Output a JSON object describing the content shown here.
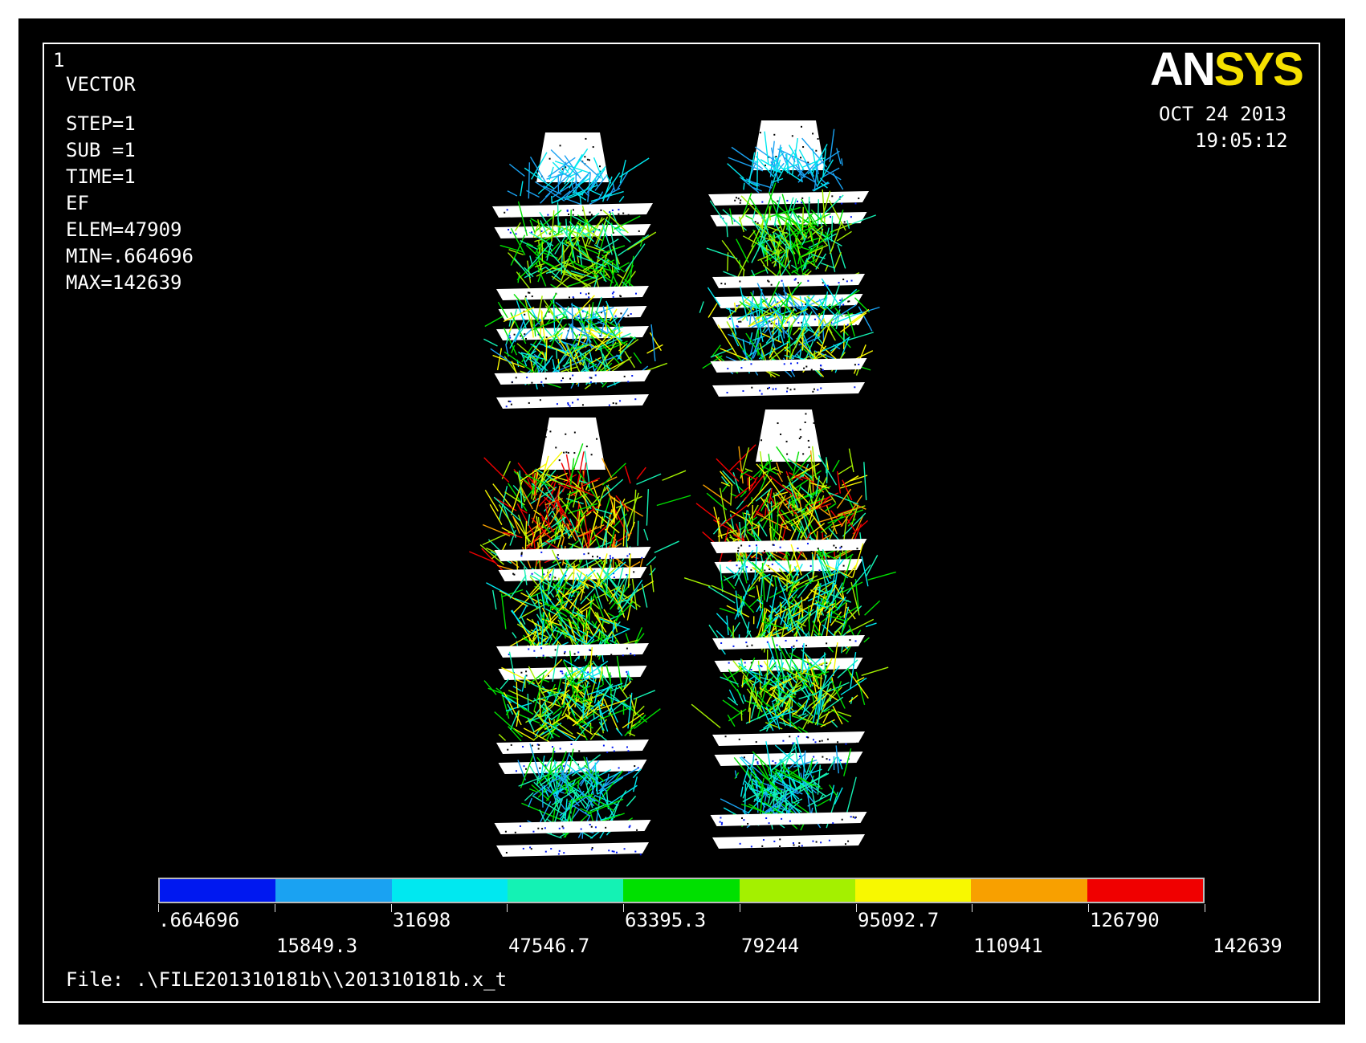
{
  "window_number": "1",
  "plot_type": "VECTOR",
  "info_lines": [
    "STEP=1",
    "SUB =1",
    "TIME=1",
    "EF",
    "ELEM=47909",
    "MIN=.664696",
    "MAX=142639"
  ],
  "logo": {
    "part1": "AN",
    "part2": "SYS"
  },
  "date": "OCT 24 2013",
  "time": "19:05:12",
  "colors": [
    "#0018f0",
    "#1aa2f2",
    "#00e8f0",
    "#14f2b4",
    "#00e000",
    "#a4f000",
    "#f8f800",
    "#f8a000",
    "#f00000"
  ],
  "legend_values": [
    ".664696",
    "15849.3",
    "31698",
    "47546.7",
    "63395.3",
    "79244",
    "95092.7",
    "110941",
    "126790",
    "142639"
  ],
  "file_label": "File: .\\FILE201310181b\\\\201310181b.x_t"
}
